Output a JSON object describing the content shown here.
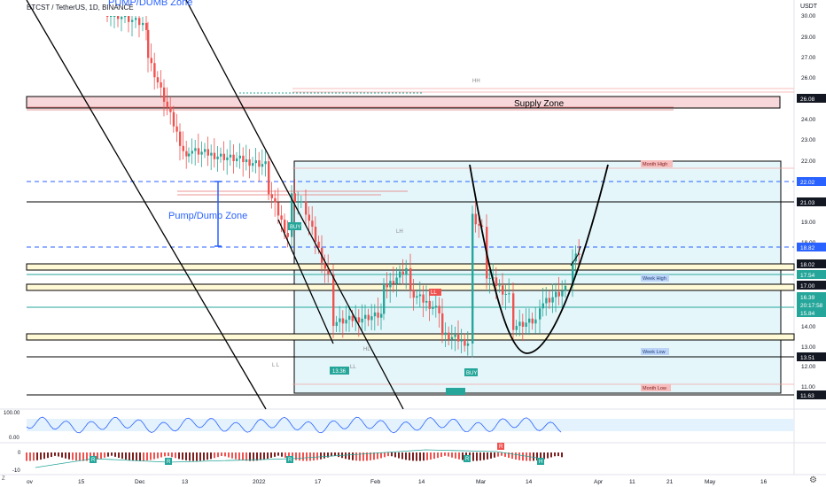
{
  "header": {
    "symbol": "BTCST / TetherUS, 1D, BINANCE",
    "top_zone_label": "PUMP/DUMB Zone"
  },
  "annotations": {
    "supply_zone": "Supply Zone",
    "pump_dumb_zone": "Pump/Dumb Zone",
    "month_high": "Month High",
    "month_low": "Month Low",
    "week_high": "Week High",
    "week_low": "Week Low",
    "buy_1": "BUY",
    "buy_2": "BUY",
    "sell_flag": "LL",
    "low_label": "13.36",
    "ll_marks": [
      "L L",
      "LL",
      "LH",
      "HL",
      "HH"
    ]
  },
  "price_axis": {
    "currency": "USDT",
    "ticks": [
      "30.00",
      "29.00",
      "27.00",
      "26.00",
      "25.00",
      "24.00",
      "23.00",
      "22.00",
      "21.00",
      "20.00",
      "19.00",
      "18.00",
      "17.00",
      "16.00",
      "15.00",
      "14.00",
      "13.00",
      "12.00",
      "11.00"
    ],
    "badges": [
      {
        "value": "26.08",
        "color": "#131722"
      },
      {
        "value": "22.02",
        "color": "#2962ff"
      },
      {
        "value": "21.03",
        "color": "#131722"
      },
      {
        "value": "18.82",
        "color": "#2962ff"
      },
      {
        "value": "18.02",
        "color": "#131722"
      },
      {
        "value": "17.54",
        "color": "#26a69a"
      },
      {
        "value": "17.00",
        "color": "#131722"
      },
      {
        "value": "16.39",
        "color": "#26a69a"
      },
      {
        "value": "20:17:58",
        "color": "#26a69a"
      },
      {
        "value": "15.84",
        "color": "#26a69a"
      },
      {
        "value": "13.51",
        "color": "#131722"
      },
      {
        "value": "11.63",
        "color": "#131722"
      }
    ]
  },
  "osc1": {
    "ticks": [
      "100.00",
      "0.00"
    ]
  },
  "osc2": {
    "ticks": [
      "0",
      "-10"
    ],
    "markers": [
      "R",
      "R",
      "R",
      "R",
      "R",
      "H"
    ]
  },
  "time_axis": {
    "ticks": [
      "ov",
      "15",
      "Dec",
      "13",
      "2022",
      "17",
      "Feb",
      "14",
      "Mar",
      "14",
      "Apr",
      "11",
      "21",
      "May",
      "16"
    ]
  },
  "colors": {
    "up": "#26a69a",
    "down": "#ef5350",
    "box": "#d2f0f6",
    "supply": "#f8d7da",
    "blue_dash": "#2962ff"
  },
  "chart_data": {
    "type": "candlestick",
    "title": "BTCST / TetherUS, 1D, BINANCE",
    "ylim": [
      11,
      30
    ],
    "levels": [
      26.08,
      22.02,
      21.03,
      18.82,
      18.02,
      17.54,
      17.0,
      16.39,
      15.84,
      13.51,
      11.63
    ],
    "zones": [
      {
        "name": "Supply Zone",
        "from": 25.8,
        "to": 26.2
      },
      {
        "name": "Pump/Dumb Zone"
      }
    ],
    "x_ticks": [
      "ov",
      "15",
      "Dec",
      "13",
      "2022",
      "17",
      "Feb",
      "14",
      "Mar",
      "14",
      "Apr",
      "11",
      "21",
      "May",
      "16"
    ]
  }
}
